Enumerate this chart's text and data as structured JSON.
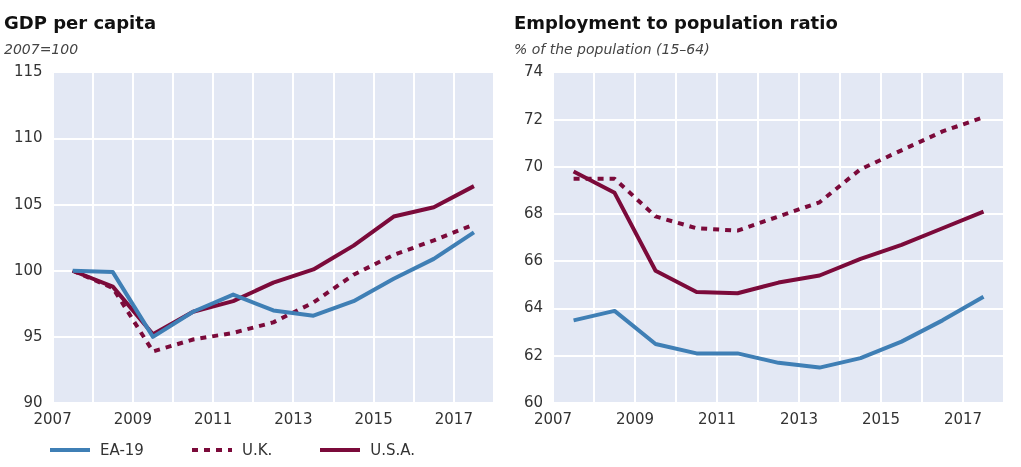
{
  "chart_data": [
    {
      "type": "line",
      "title": "GDP per capita",
      "subtitle": "2007=100",
      "x": [
        2007.5,
        2008.5,
        2009.5,
        2010.5,
        2011.5,
        2012.5,
        2013.5,
        2014.5,
        2015.5,
        2016.5,
        2017.5
      ],
      "xlim": [
        2007,
        2018
      ],
      "xticks": [
        2007,
        {
          "value": 2008,
          "label": null
        },
        2009,
        {
          "value": 2010,
          "label": null
        },
        2011,
        {
          "value": 2012,
          "label": null
        },
        2013,
        {
          "value": 2014,
          "label": null
        },
        2015,
        {
          "value": 2016,
          "label": null
        },
        2017,
        {
          "value": 2018,
          "label": null
        }
      ],
      "ylim": [
        90,
        115
      ],
      "yticks": [
        90,
        95,
        100,
        105,
        110,
        115
      ],
      "grid": true,
      "legend": "bottom",
      "marker": "none",
      "series": [
        {
          "name": "EA-19",
          "color": "#3f7fb5",
          "values": [
            100,
            99.9,
            95.0,
            96.9,
            98.2,
            97.0,
            96.6,
            97.7,
            99.4,
            100.9,
            102.9
          ]
        },
        {
          "name": "U.K.",
          "color": "#7b0a3a",
          "line_style": "dashed",
          "values": [
            100,
            98.7,
            93.9,
            94.8,
            95.3,
            96.1,
            97.6,
            99.7,
            101.2,
            102.3,
            103.5
          ]
        },
        {
          "name": "U.S.A.",
          "color": "#7b0a3a",
          "values": [
            100,
            98.8,
            95.2,
            96.9,
            97.7,
            99.1,
            100.1,
            101.9,
            104.1,
            104.8,
            106.4
          ]
        }
      ]
    },
    {
      "type": "line",
      "title": "Employment to population ratio",
      "subtitle": "% of the population (15–64)",
      "x": [
        2007.5,
        2008.5,
        2009.5,
        2010.5,
        2011.5,
        2012.5,
        2013.5,
        2014.5,
        2015.5,
        2016.5,
        2017.5
      ],
      "xlim": [
        2007,
        2018
      ],
      "xticks": [
        2007,
        {
          "value": 2008,
          "label": null
        },
        2009,
        {
          "value": 2010,
          "label": null
        },
        2011,
        {
          "value": 2012,
          "label": null
        },
        2013,
        {
          "value": 2014,
          "label": null
        },
        2015,
        {
          "value": 2016,
          "label": null
        },
        2017,
        {
          "value": 2018,
          "label": null
        }
      ],
      "ylim": [
        60,
        74
      ],
      "yticks": [
        60,
        62,
        64,
        66,
        68,
        70,
        72,
        74
      ],
      "grid": true,
      "marker": "none",
      "series": [
        {
          "color": "#3f7fb5",
          "values": [
            63.5,
            63.9,
            62.5,
            62.1,
            62.1,
            61.7,
            61.5,
            61.9,
            62.6,
            63.5,
            64.5
          ]
        },
        {
          "color": "#7b0a3a",
          "line_style": "dashed",
          "values": [
            69.5,
            69.5,
            67.9,
            67.4,
            67.3,
            67.9,
            68.5,
            69.9,
            70.7,
            71.5,
            72.1
          ]
        },
        {
          "color": "#7b0a3a",
          "values": [
            69.8,
            68.9,
            65.6,
            64.7,
            64.65,
            65.1,
            65.4,
            66.1,
            66.7,
            67.4,
            68.1
          ]
        }
      ]
    }
  ]
}
